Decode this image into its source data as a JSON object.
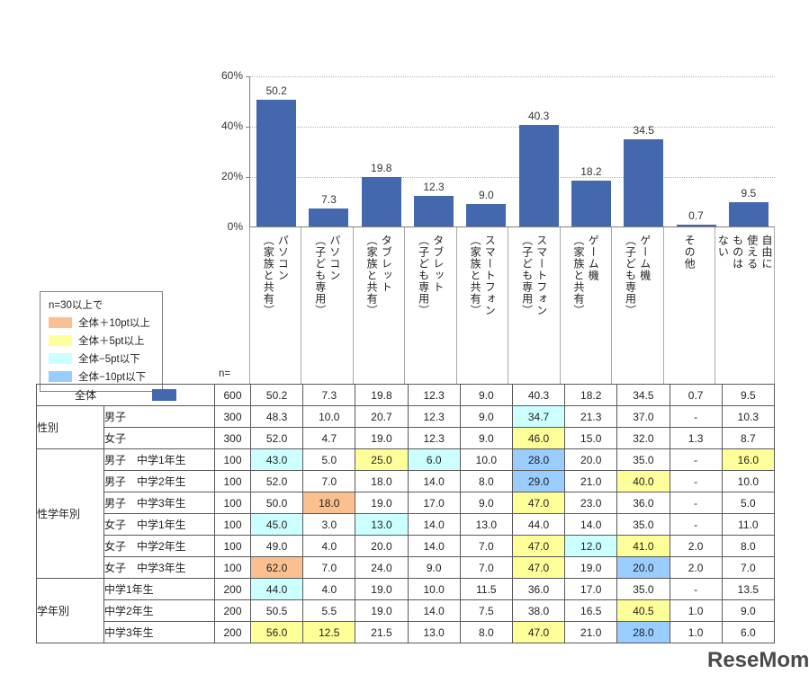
{
  "legend_box": {
    "title": "n=30以上で",
    "items": [
      {
        "label": "全体＋10pt以上",
        "color": "#FAC090"
      },
      {
        "label": "全体＋5pt以上",
        "color": "#FFFF99"
      },
      {
        "label": "全体−5pt以下",
        "color": "#CCFFFF"
      },
      {
        "label": "全体−10pt以下",
        "color": "#99CCFF"
      }
    ]
  },
  "chart_data": {
    "type": "bar",
    "title": "",
    "xlabel": "",
    "ylabel": "",
    "ylim": [
      0,
      60
    ],
    "grid": true,
    "legend_position": "none",
    "bar_color": "#4368AE",
    "categories": [
      "パソコン\n（家族と共有）",
      "パソコン\n（子ども専用）",
      "タブレット\n（家族と共有）",
      "タブレット\n（子ども専用）",
      "スマートフォン\n（家族と共有）",
      "スマートフォン\n（子ども専用）",
      "ゲーム機\n（家族と共有）",
      "ゲーム機\n（子ども専用）",
      "その他",
      "自由に\n使える\nものは\nない"
    ],
    "values": [
      50.2,
      7.3,
      19.8,
      12.3,
      9.0,
      40.3,
      18.2,
      34.5,
      0.7,
      9.5
    ],
    "value_labels": [
      "50.2",
      "7.3",
      "19.8",
      "12.3",
      "9.0",
      "40.3",
      "18.2",
      "34.5",
      "0.7",
      "9.5"
    ],
    "yticks": [
      {
        "value": 0,
        "label": "0%"
      },
      {
        "value": 20,
        "label": "20%"
      },
      {
        "value": 40,
        "label": "40%"
      },
      {
        "value": 60,
        "label": "60%"
      }
    ]
  },
  "table": {
    "n_header": "n=",
    "highlight_colors": {
      "o": "#FAC090",
      "y": "#FFFF99",
      "c": "#CCFFFF",
      "b": "#99CCFF"
    },
    "total_row": {
      "label": "全体",
      "swatch_color": "#4368AE",
      "n": "600",
      "values": [
        "50.2",
        "7.3",
        "19.8",
        "12.3",
        "9.0",
        "40.3",
        "18.2",
        "34.5",
        "0.7",
        "9.5"
      ],
      "hl": [
        null,
        null,
        null,
        null,
        null,
        null,
        null,
        null,
        null,
        null
      ]
    },
    "groups": [
      {
        "name": "性別",
        "rows": [
          {
            "label": "男子",
            "n": "300",
            "values": [
              "48.3",
              "10.0",
              "20.7",
              "12.3",
              "9.0",
              "34.7",
              "21.3",
              "37.0",
              "-",
              "10.3"
            ],
            "hl": [
              null,
              null,
              null,
              null,
              null,
              "c",
              null,
              null,
              null,
              null
            ]
          },
          {
            "label": "女子",
            "n": "300",
            "values": [
              "52.0",
              "4.7",
              "19.0",
              "12.3",
              "9.0",
              "46.0",
              "15.0",
              "32.0",
              "1.3",
              "8.7"
            ],
            "hl": [
              null,
              null,
              null,
              null,
              null,
              "y",
              null,
              null,
              null,
              null
            ]
          }
        ]
      },
      {
        "name": "性学年別",
        "rows": [
          {
            "label": "男子　中学1年生",
            "n": "100",
            "values": [
              "43.0",
              "5.0",
              "25.0",
              "6.0",
              "10.0",
              "28.0",
              "20.0",
              "35.0",
              "-",
              "16.0"
            ],
            "hl": [
              "c",
              null,
              "y",
              "c",
              null,
              "b",
              null,
              null,
              null,
              "y"
            ]
          },
          {
            "label": "男子　中学2年生",
            "n": "100",
            "values": [
              "52.0",
              "7.0",
              "18.0",
              "14.0",
              "8.0",
              "29.0",
              "21.0",
              "40.0",
              "-",
              "10.0"
            ],
            "hl": [
              null,
              null,
              null,
              null,
              null,
              "b",
              null,
              "y",
              null,
              null
            ]
          },
          {
            "label": "男子　中学3年生",
            "n": "100",
            "values": [
              "50.0",
              "18.0",
              "19.0",
              "17.0",
              "9.0",
              "47.0",
              "23.0",
              "36.0",
              "-",
              "5.0"
            ],
            "hl": [
              null,
              "o",
              null,
              null,
              null,
              "y",
              null,
              null,
              null,
              null
            ]
          },
          {
            "label": "女子　中学1年生",
            "n": "100",
            "values": [
              "45.0",
              "3.0",
              "13.0",
              "14.0",
              "13.0",
              "44.0",
              "14.0",
              "35.0",
              "-",
              "11.0"
            ],
            "hl": [
              "c",
              null,
              "c",
              null,
              null,
              null,
              null,
              null,
              null,
              null
            ]
          },
          {
            "label": "女子　中学2年生",
            "n": "100",
            "values": [
              "49.0",
              "4.0",
              "20.0",
              "14.0",
              "7.0",
              "47.0",
              "12.0",
              "41.0",
              "2.0",
              "8.0"
            ],
            "hl": [
              null,
              null,
              null,
              null,
              null,
              "y",
              "c",
              "y",
              null,
              null
            ]
          },
          {
            "label": "女子　中学3年生",
            "n": "100",
            "values": [
              "62.0",
              "7.0",
              "24.0",
              "9.0",
              "7.0",
              "47.0",
              "19.0",
              "20.0",
              "2.0",
              "7.0"
            ],
            "hl": [
              "o",
              null,
              null,
              null,
              null,
              "y",
              null,
              "b",
              null,
              null
            ]
          }
        ]
      },
      {
        "name": "学年別",
        "rows": [
          {
            "label": "中学1年生",
            "n": "200",
            "values": [
              "44.0",
              "4.0",
              "19.0",
              "10.0",
              "11.5",
              "36.0",
              "17.0",
              "35.0",
              "-",
              "13.5"
            ],
            "hl": [
              "c",
              null,
              null,
              null,
              null,
              null,
              null,
              null,
              null,
              null
            ]
          },
          {
            "label": "中学2年生",
            "n": "200",
            "values": [
              "50.5",
              "5.5",
              "19.0",
              "14.0",
              "7.5",
              "38.0",
              "16.5",
              "40.5",
              "1.0",
              "9.0"
            ],
            "hl": [
              null,
              null,
              null,
              null,
              null,
              null,
              null,
              "y",
              null,
              null
            ]
          },
          {
            "label": "中学3年生",
            "n": "200",
            "values": [
              "56.0",
              "12.5",
              "21.5",
              "13.0",
              "8.0",
              "47.0",
              "21.0",
              "28.0",
              "1.0",
              "6.0"
            ],
            "hl": [
              "y",
              "y",
              null,
              null,
              null,
              "y",
              null,
              "b",
              null,
              null
            ]
          }
        ]
      }
    ]
  },
  "logo": {
    "text": "ReseMom",
    "mark": "®"
  }
}
